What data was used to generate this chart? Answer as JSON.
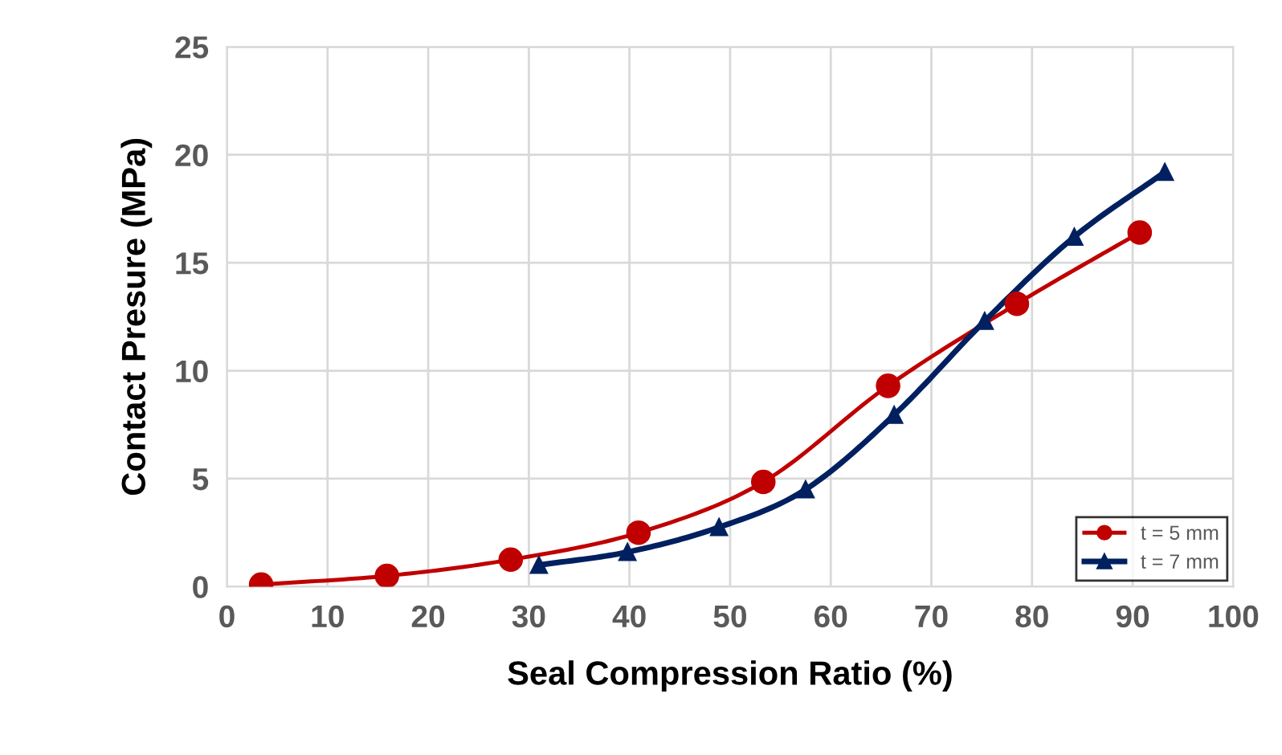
{
  "chart_data": {
    "type": "line",
    "xlabel": "Seal Compression Ratio (%)",
    "ylabel": "Contact Presure (MPa)",
    "xlim": [
      0,
      100
    ],
    "xticks": [
      0,
      10,
      20,
      30,
      40,
      50,
      60,
      70,
      80,
      90,
      100
    ],
    "ylim": [
      0,
      25
    ],
    "yticks": [
      0,
      5,
      10,
      15,
      20,
      25
    ],
    "grid": true,
    "legend": "bottom right",
    "series": [
      {
        "name": "t = 5 mm",
        "color": "#c00000",
        "marker": "circle",
        "x": [
          3.4,
          15.9,
          28.2,
          40.9,
          53.3,
          65.7,
          78.5,
          90.7
        ],
        "values": [
          0.1,
          0.5,
          1.25,
          2.5,
          4.85,
          9.3,
          13.1,
          16.4
        ]
      },
      {
        "name": "t = 7 mm",
        "color": "#002060",
        "marker": "triangle",
        "x": [
          31,
          39.8,
          48.9,
          57.5,
          66.3,
          75.3,
          84.2,
          93.2
        ],
        "values": [
          1.0,
          1.6,
          2.75,
          4.5,
          7.95,
          12.3,
          16.2,
          19.2
        ]
      }
    ]
  }
}
